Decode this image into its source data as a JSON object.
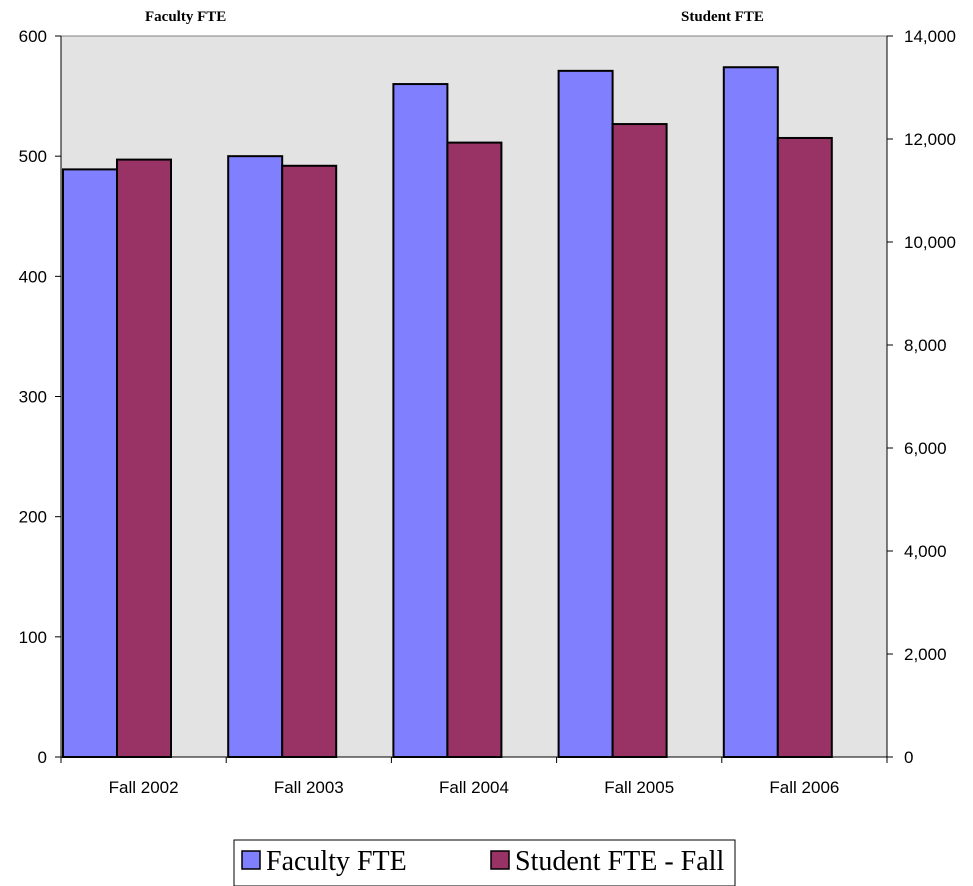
{
  "chart_data": {
    "type": "bar",
    "categories": [
      "Fall 2002",
      "Fall 2003",
      "Fall 2004",
      "Fall 2005",
      "Fall 2006"
    ],
    "series": [
      {
        "name": "Faculty FTE",
        "axis": "left",
        "color": "#8080ff",
        "values": [
          489,
          500,
          560,
          571,
          574
        ]
      },
      {
        "name": "Student FTE - Fall",
        "axis": "right",
        "color": "#993366",
        "values": [
          11600,
          11480,
          11930,
          12290,
          12020
        ]
      }
    ],
    "left_axis": {
      "title": "Faculty FTE",
      "ylim": [
        0,
        600
      ],
      "ticks": [
        0,
        100,
        200,
        300,
        400,
        500,
        600
      ],
      "tick_labels": [
        "0",
        "100",
        "200",
        "300",
        "400",
        "500",
        "600"
      ]
    },
    "right_axis": {
      "title": "Student FTE",
      "ylim": [
        0,
        14000
      ],
      "ticks": [
        0,
        2000,
        4000,
        6000,
        8000,
        10000,
        12000,
        14000
      ],
      "tick_labels": [
        "0",
        "2,000",
        "4,000",
        "6,000",
        "8,000",
        "10,000",
        "12,000",
        "14,000"
      ]
    },
    "plot_background": "#e3e3e3",
    "grid": false,
    "legend_position": "bottom"
  }
}
